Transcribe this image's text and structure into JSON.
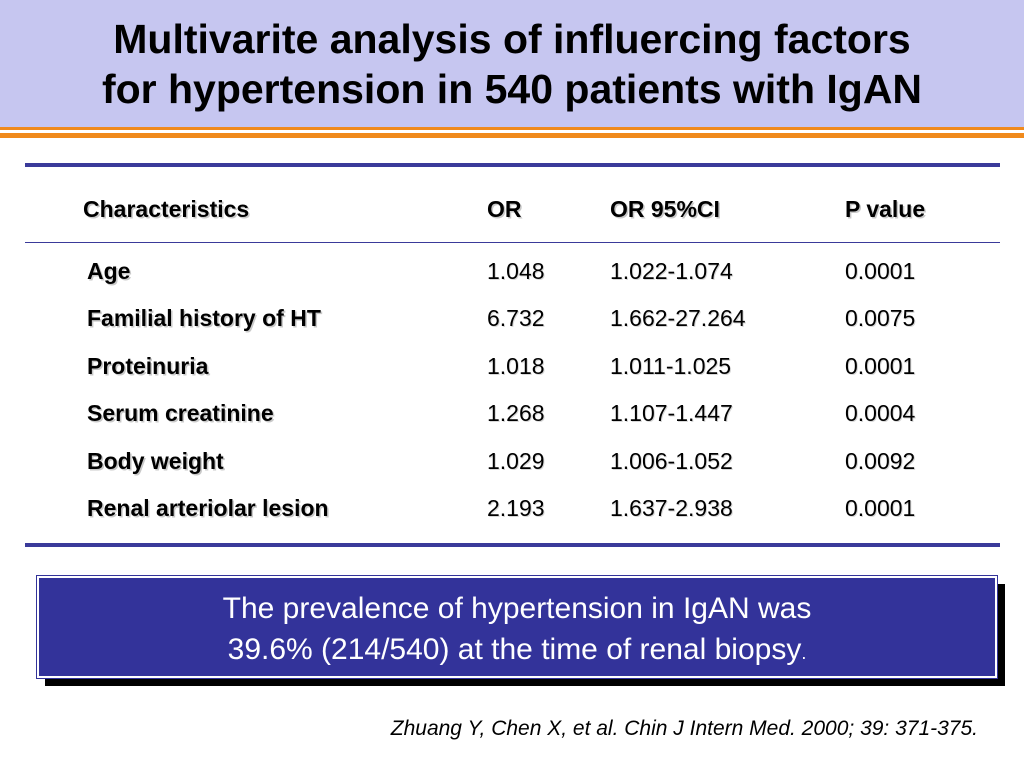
{
  "title_line1": "Multivarite analysis of influercing factors",
  "title_line2": "for hypertension in 540 patients with IgAN",
  "table": {
    "headers": [
      "Characteristics",
      "OR",
      "OR 95%CI",
      "P value"
    ],
    "rows": [
      [
        "Age",
        "1.048",
        "1.022-1.074",
        "0.0001"
      ],
      [
        "Familial history of HT",
        "6.732",
        "1.662-27.264",
        "0.0075"
      ],
      [
        "Proteinuria",
        "1.018",
        "1.011-1.025",
        "0.0001"
      ],
      [
        "Serum creatinine",
        "1.268",
        "1.107-1.447",
        "0.0004"
      ],
      [
        "Body weight",
        "1.029",
        "1.006-1.052",
        "0.0092"
      ],
      [
        "Renal arteriolar lesion",
        "2.193",
        "1.637-2.938",
        "0.0001"
      ]
    ]
  },
  "callout_line1": "The prevalence of hypertension in IgAN was",
  "callout_line2": "39.6% (214/540) at the time of renal biopsy",
  "callout_tail": ".",
  "citation": "Zhuang Y, Chen X, et al. Chin J Intern Med. 2000; 39: 371-375.",
  "colors": {
    "title_band": "#c6c6f0",
    "accent_orange": "#f08a1c",
    "rule_navy": "#3a3a9a",
    "callout_bg": "#33339a"
  }
}
